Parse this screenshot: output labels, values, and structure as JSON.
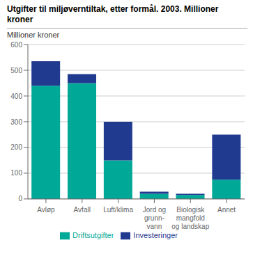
{
  "chart_data": {
    "type": "bar",
    "title": "Utgifter til miljøverntiltak, etter formål. 2003. Millioner\nkroner",
    "y_label": "Millioner kroner",
    "categories": [
      "Avløp",
      "Avfall",
      "Luft/klima",
      "Jord og\ngrunn-\nvann",
      "Biologisk\nmangfold\nog landskap",
      "Annet"
    ],
    "series": [
      {
        "name": "Driftsutgifter",
        "color": "#00A898",
        "values": [
          440,
          450,
          150,
          20,
          15,
          75
        ]
      },
      {
        "name": "Investeringer",
        "color": "#1F3A8F",
        "values": [
          95,
          35,
          150,
          8,
          5,
          175
        ]
      }
    ],
    "stacked": true,
    "ylim": [
      0,
      600
    ],
    "yticks": [
      0,
      100,
      200,
      300,
      400,
      500,
      600
    ],
    "grid": true,
    "legend": "bottom"
  }
}
